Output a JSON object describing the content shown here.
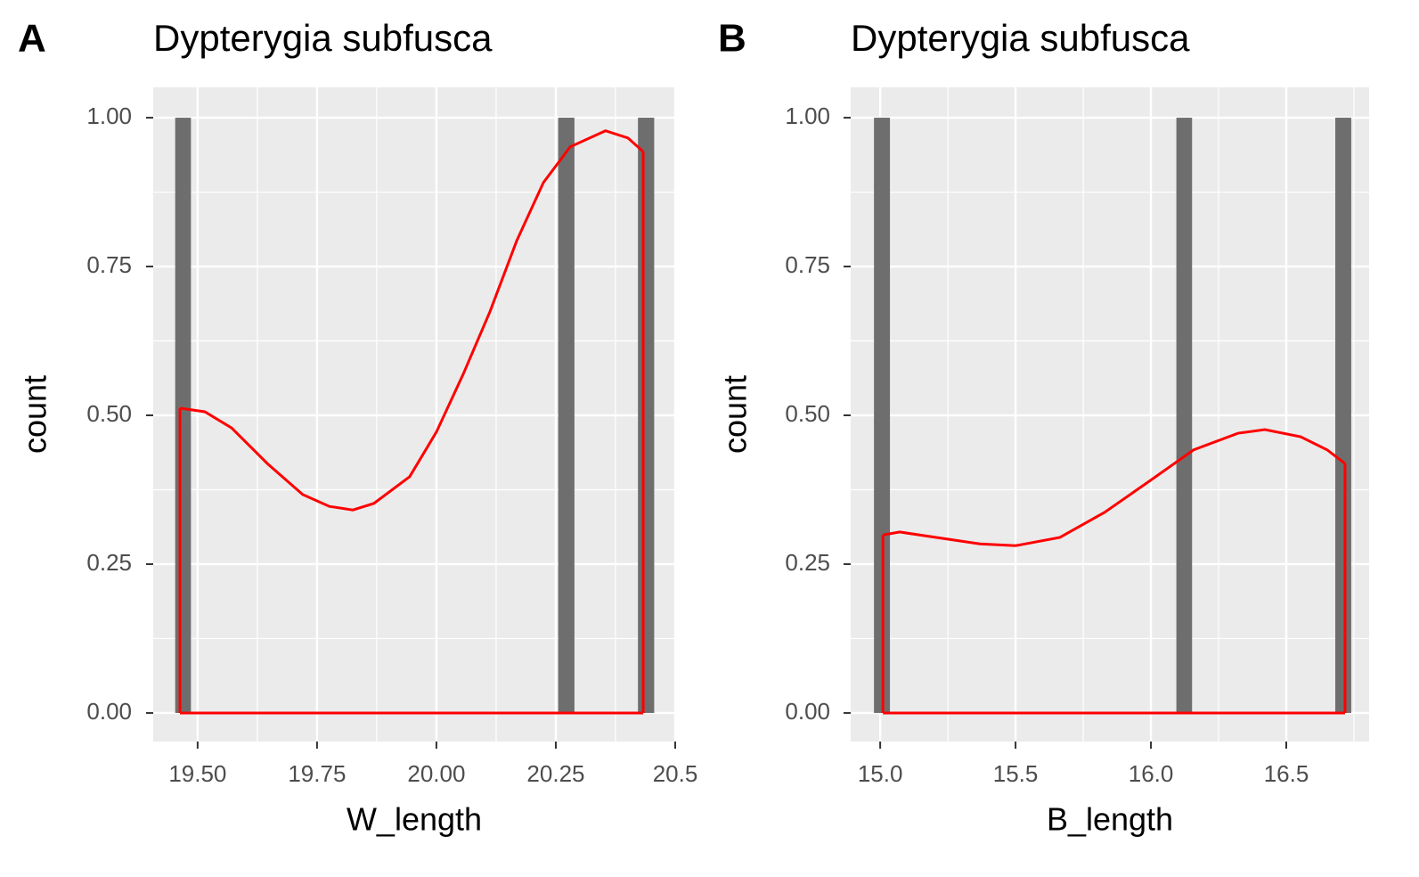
{
  "chart_data": [
    {
      "type": "histogram",
      "panel_label": "A",
      "title": "Dypterygia subfusca",
      "x_label": "W_length",
      "y_label": "count",
      "bins": [
        19.453,
        19.486,
        19.52,
        19.553,
        19.587,
        19.62,
        19.654,
        19.687,
        19.72,
        19.754,
        19.787,
        19.821,
        19.854,
        19.888,
        19.921,
        19.954,
        19.988,
        20.021,
        20.055,
        20.088,
        20.122,
        20.155,
        20.188,
        20.222,
        20.255,
        20.289,
        20.322,
        20.356,
        20.389,
        20.422,
        20.456
      ],
      "counts": [
        1,
        0,
        0,
        0,
        0,
        0,
        0,
        0,
        0,
        0,
        0,
        0,
        0,
        0,
        0,
        0,
        0,
        0,
        0,
        0,
        0,
        0,
        0,
        0,
        1,
        0,
        0,
        0,
        0,
        1
      ],
      "color": "#6e6e6e",
      "density": {
        "color": "#ff0000",
        "x": [
          19.463,
          19.515,
          19.571,
          19.646,
          19.72,
          19.776,
          19.825,
          19.869,
          19.944,
          20.0,
          20.056,
          20.112,
          20.168,
          20.224,
          20.28,
          20.354,
          20.401,
          20.433
        ],
        "values": [
          0.512,
          0.506,
          0.479,
          0.419,
          0.367,
          0.347,
          0.341,
          0.352,
          0.397,
          0.472,
          0.569,
          0.674,
          0.793,
          0.891,
          0.951,
          0.978,
          0.966,
          0.943
        ]
      },
      "xlim": [
        19.407,
        20.5
      ],
      "xticks": [
        {
          "value": 19.5,
          "label": "19.50"
        },
        19.75,
        {
          "value": 20,
          "label": "20.00"
        },
        20.25,
        20.5
      ],
      "ylim": [
        -0.048,
        1.051
      ],
      "yticks": [
        {
          "value": 0,
          "label": "0.00"
        },
        0.25,
        {
          "value": 0.5,
          "label": "0.50"
        },
        0.75,
        {
          "value": 1,
          "label": "1.00"
        }
      ],
      "grid": true
    },
    {
      "type": "histogram",
      "panel_label": "B",
      "title": "Dypterygia subfusca",
      "x_label": "B_length",
      "y_label": "count",
      "bins": [
        14.977,
        15.036,
        15.094,
        15.153,
        15.212,
        15.271,
        15.33,
        15.388,
        15.447,
        15.506,
        15.565,
        15.624,
        15.682,
        15.741,
        15.8,
        15.859,
        15.917,
        15.976,
        16.035,
        16.094,
        16.152,
        16.211,
        16.27,
        16.329,
        16.388,
        16.446,
        16.505,
        16.564,
        16.623,
        16.681,
        16.74
      ],
      "counts": [
        1,
        0,
        0,
        0,
        0,
        0,
        0,
        0,
        0,
        0,
        0,
        0,
        0,
        0,
        0,
        0,
        0,
        0,
        0,
        1,
        0,
        0,
        0,
        0,
        0,
        0,
        0,
        0,
        0,
        1
      ],
      "color": "#6e6e6e",
      "density": {
        "color": "#ff0000",
        "x": [
          15.01,
          15.072,
          15.204,
          15.368,
          15.5,
          15.664,
          15.829,
          15.993,
          16.158,
          16.322,
          16.421,
          16.553,
          16.651,
          16.717
        ],
        "values": [
          0.299,
          0.304,
          0.295,
          0.284,
          0.281,
          0.295,
          0.337,
          0.389,
          0.442,
          0.47,
          0.476,
          0.464,
          0.442,
          0.419
        ]
      },
      "xlim": [
        14.891,
        16.806
      ],
      "xticks": [
        {
          "value": 15,
          "label": "15.0"
        },
        15.5,
        {
          "value": 16,
          "label": "16.0"
        },
        16.5
      ],
      "ylim": [
        -0.048,
        1.051
      ],
      "yticks": [
        {
          "value": 0,
          "label": "0.00"
        },
        0.25,
        {
          "value": 0.5,
          "label": "0.50"
        },
        0.75,
        {
          "value": 1,
          "label": "1.00"
        }
      ],
      "grid": true
    }
  ]
}
